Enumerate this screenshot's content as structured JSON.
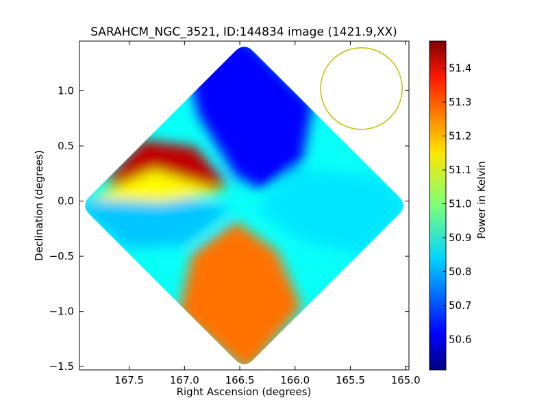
{
  "chart_data": {
    "type": "heatmap",
    "title": "SARAHCM_NGC_3521, ID:144834 image (1421.9,XX)",
    "xlabel": "Right Ascension (degrees)",
    "ylabel": "Declination (degrees)",
    "xlim": [
      167.95,
      164.97
    ],
    "ylim": [
      -1.53,
      1.45
    ],
    "xticks": [
      167.5,
      167.0,
      166.5,
      166.0,
      165.5,
      165.0
    ],
    "xtick_labels": [
      "167.5",
      "167.0",
      "166.5",
      "166.0",
      "165.5",
      "165.0"
    ],
    "yticks": [
      1.0,
      0.5,
      0.0,
      -0.5,
      -1.0,
      -1.5
    ],
    "ytick_labels": [
      "1.0",
      "0.5",
      "0.0",
      "−0.5",
      "−1.0",
      "−1.5"
    ],
    "colorbar": {
      "label": "Power in Kelvin",
      "range": [
        50.51,
        51.48
      ],
      "ticks": [
        50.6,
        50.7,
        50.8,
        50.9,
        51.0,
        51.1,
        51.2,
        51.3,
        51.4
      ],
      "tick_labels": [
        "50.6",
        "50.7",
        "50.8",
        "50.9",
        "51.0",
        "51.1",
        "51.2",
        "51.3",
        "51.4"
      ],
      "colormap": "jet"
    },
    "footprint": {
      "shape": "rotated-square",
      "center": [
        166.46,
        -0.04
      ],
      "half_diagonal_ra": 1.48,
      "half_diagonal_dec": 1.48
    },
    "lobes": [
      {
        "name": "north",
        "direction": "north",
        "mean_power": 50.63
      },
      {
        "name": "south",
        "direction": "south",
        "mean_power": 51.25
      },
      {
        "name": "east",
        "direction": "east",
        "mean_power": 50.85
      },
      {
        "name": "west",
        "direction": "west",
        "mean_power": 50.82
      },
      {
        "name": "northeast-peak",
        "ra": 167.65,
        "dec": 0.35,
        "mean_power": 51.42
      }
    ],
    "beam_circle": {
      "center_ra": 165.4,
      "center_dec": 1.02,
      "radius_deg": 0.37,
      "color": "#bfbf00"
    }
  }
}
